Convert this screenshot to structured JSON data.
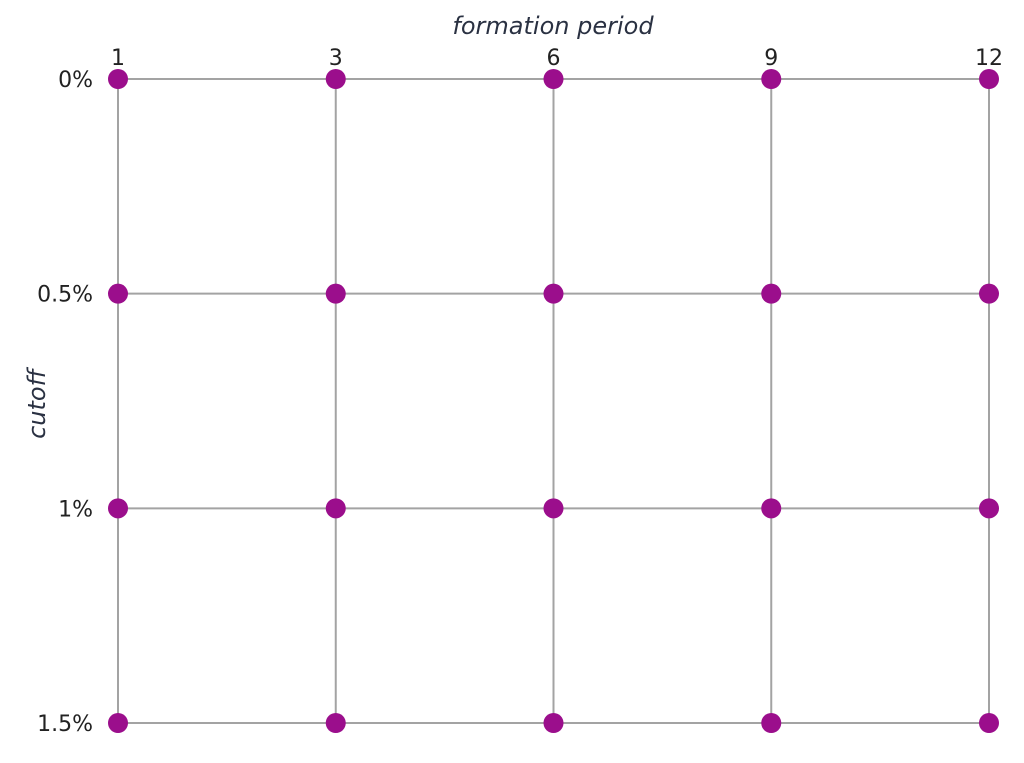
{
  "chart_data": {
    "type": "scatter",
    "title": "",
    "xlabel": "formation period",
    "ylabel": "cutoff",
    "x_categories": [
      "1",
      "3",
      "6",
      "9",
      "12"
    ],
    "y_categories": [
      "0%",
      "0.5%",
      "1%",
      "1.5%"
    ],
    "x_axis_position": "top",
    "y_axis_position": "left",
    "grid": true,
    "series": [
      {
        "marker_color": "#9b0e8c",
        "line_color": "#a3a3a3",
        "points": [
          {
            "x": "1",
            "y": "0%"
          },
          {
            "x": "3",
            "y": "0%"
          },
          {
            "x": "6",
            "y": "0%"
          },
          {
            "x": "9",
            "y": "0%"
          },
          {
            "x": "12",
            "y": "0%"
          },
          {
            "x": "1",
            "y": "0.5%"
          },
          {
            "x": "3",
            "y": "0.5%"
          },
          {
            "x": "6",
            "y": "0.5%"
          },
          {
            "x": "9",
            "y": "0.5%"
          },
          {
            "x": "12",
            "y": "0.5%"
          },
          {
            "x": "1",
            "y": "1%"
          },
          {
            "x": "3",
            "y": "1%"
          },
          {
            "x": "6",
            "y": "1%"
          },
          {
            "x": "9",
            "y": "1%"
          },
          {
            "x": "12",
            "y": "1%"
          },
          {
            "x": "1",
            "y": "1.5%"
          },
          {
            "x": "3",
            "y": "1.5%"
          },
          {
            "x": "6",
            "y": "1.5%"
          },
          {
            "x": "9",
            "y": "1.5%"
          },
          {
            "x": "12",
            "y": "1.5%"
          }
        ]
      }
    ]
  }
}
